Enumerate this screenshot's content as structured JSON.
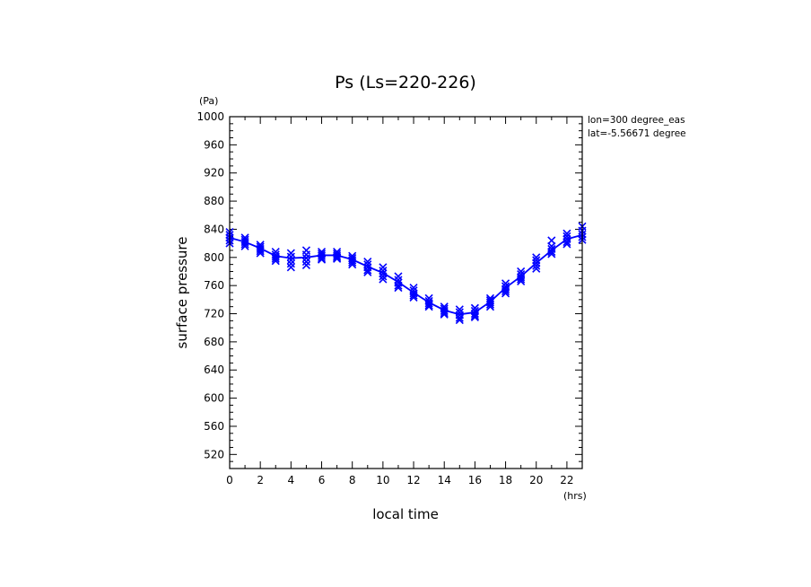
{
  "chart_data": {
    "type": "scatter",
    "title": "Ps (Ls=220-226)",
    "xlabel": "local time",
    "ylabel": "surface pressure",
    "x_unit": "(hrs)",
    "y_unit": "(Pa)",
    "xlim": [
      0,
      23
    ],
    "ylim": [
      500,
      1000
    ],
    "x_major_ticks": [
      0,
      2,
      4,
      6,
      8,
      10,
      12,
      14,
      16,
      18,
      20,
      22
    ],
    "y_major_ticks": [
      520,
      560,
      600,
      640,
      680,
      720,
      760,
      800,
      840,
      880,
      920,
      960,
      1000
    ],
    "annotations": [
      "lon=300 degree_eas",
      "lat=-5.56671 degree"
    ],
    "color": "#0000ff",
    "mean_line": {
      "x": [
        0,
        1,
        2,
        3,
        4,
        5,
        6,
        7,
        8,
        9,
        10,
        11,
        12,
        13,
        14,
        15,
        16,
        17,
        18,
        19,
        20,
        21,
        22,
        23
      ],
      "y": [
        828,
        822,
        813,
        802,
        799,
        800,
        803,
        803,
        797,
        787,
        778,
        765,
        750,
        736,
        725,
        719,
        722,
        737,
        757,
        773,
        792,
        810,
        826,
        832
      ]
    },
    "scatter_points": {
      "x": [
        0,
        0,
        0,
        0,
        0,
        1,
        1,
        1,
        1,
        1,
        2,
        2,
        2,
        2,
        2,
        3,
        3,
        3,
        3,
        3,
        4,
        4,
        4,
        4,
        4,
        5,
        5,
        5,
        5,
        5,
        6,
        6,
        6,
        6,
        6,
        7,
        7,
        7,
        7,
        7,
        8,
        8,
        8,
        8,
        8,
        9,
        9,
        9,
        9,
        9,
        10,
        10,
        10,
        10,
        10,
        11,
        11,
        11,
        11,
        11,
        12,
        12,
        12,
        12,
        12,
        13,
        13,
        13,
        13,
        13,
        14,
        14,
        14,
        14,
        14,
        15,
        15,
        15,
        15,
        15,
        16,
        16,
        16,
        16,
        16,
        17,
        17,
        17,
        17,
        17,
        18,
        18,
        18,
        18,
        18,
        19,
        19,
        19,
        19,
        19,
        20,
        20,
        20,
        20,
        20,
        21,
        21,
        21,
        21,
        21,
        22,
        22,
        22,
        22,
        22,
        23,
        23,
        23,
        23,
        23
      ],
      "y": [
        836,
        832,
        828,
        824,
        820,
        828,
        825,
        822,
        819,
        816,
        818,
        815,
        812,
        809,
        806,
        808,
        804,
        801,
        798,
        795,
        806,
        801,
        796,
        791,
        786,
        810,
        804,
        799,
        794,
        789,
        808,
        805,
        802,
        799,
        797,
        808,
        805,
        802,
        800,
        798,
        802,
        799,
        796,
        793,
        790,
        794,
        790,
        786,
        782,
        779,
        786,
        781,
        777,
        773,
        769,
        773,
        768,
        764,
        760,
        757,
        757,
        753,
        749,
        746,
        743,
        742,
        738,
        735,
        732,
        730,
        730,
        727,
        724,
        721,
        719,
        726,
        722,
        718,
        714,
        711,
        728,
        724,
        720,
        717,
        715,
        742,
        739,
        736,
        733,
        730,
        763,
        759,
        755,
        752,
        749,
        780,
        776,
        772,
        769,
        766,
        800,
        796,
        792,
        788,
        784,
        824,
        816,
        812,
        808,
        805,
        834,
        830,
        826,
        822,
        819,
        844,
        838,
        833,
        829,
        825
      ]
    }
  }
}
